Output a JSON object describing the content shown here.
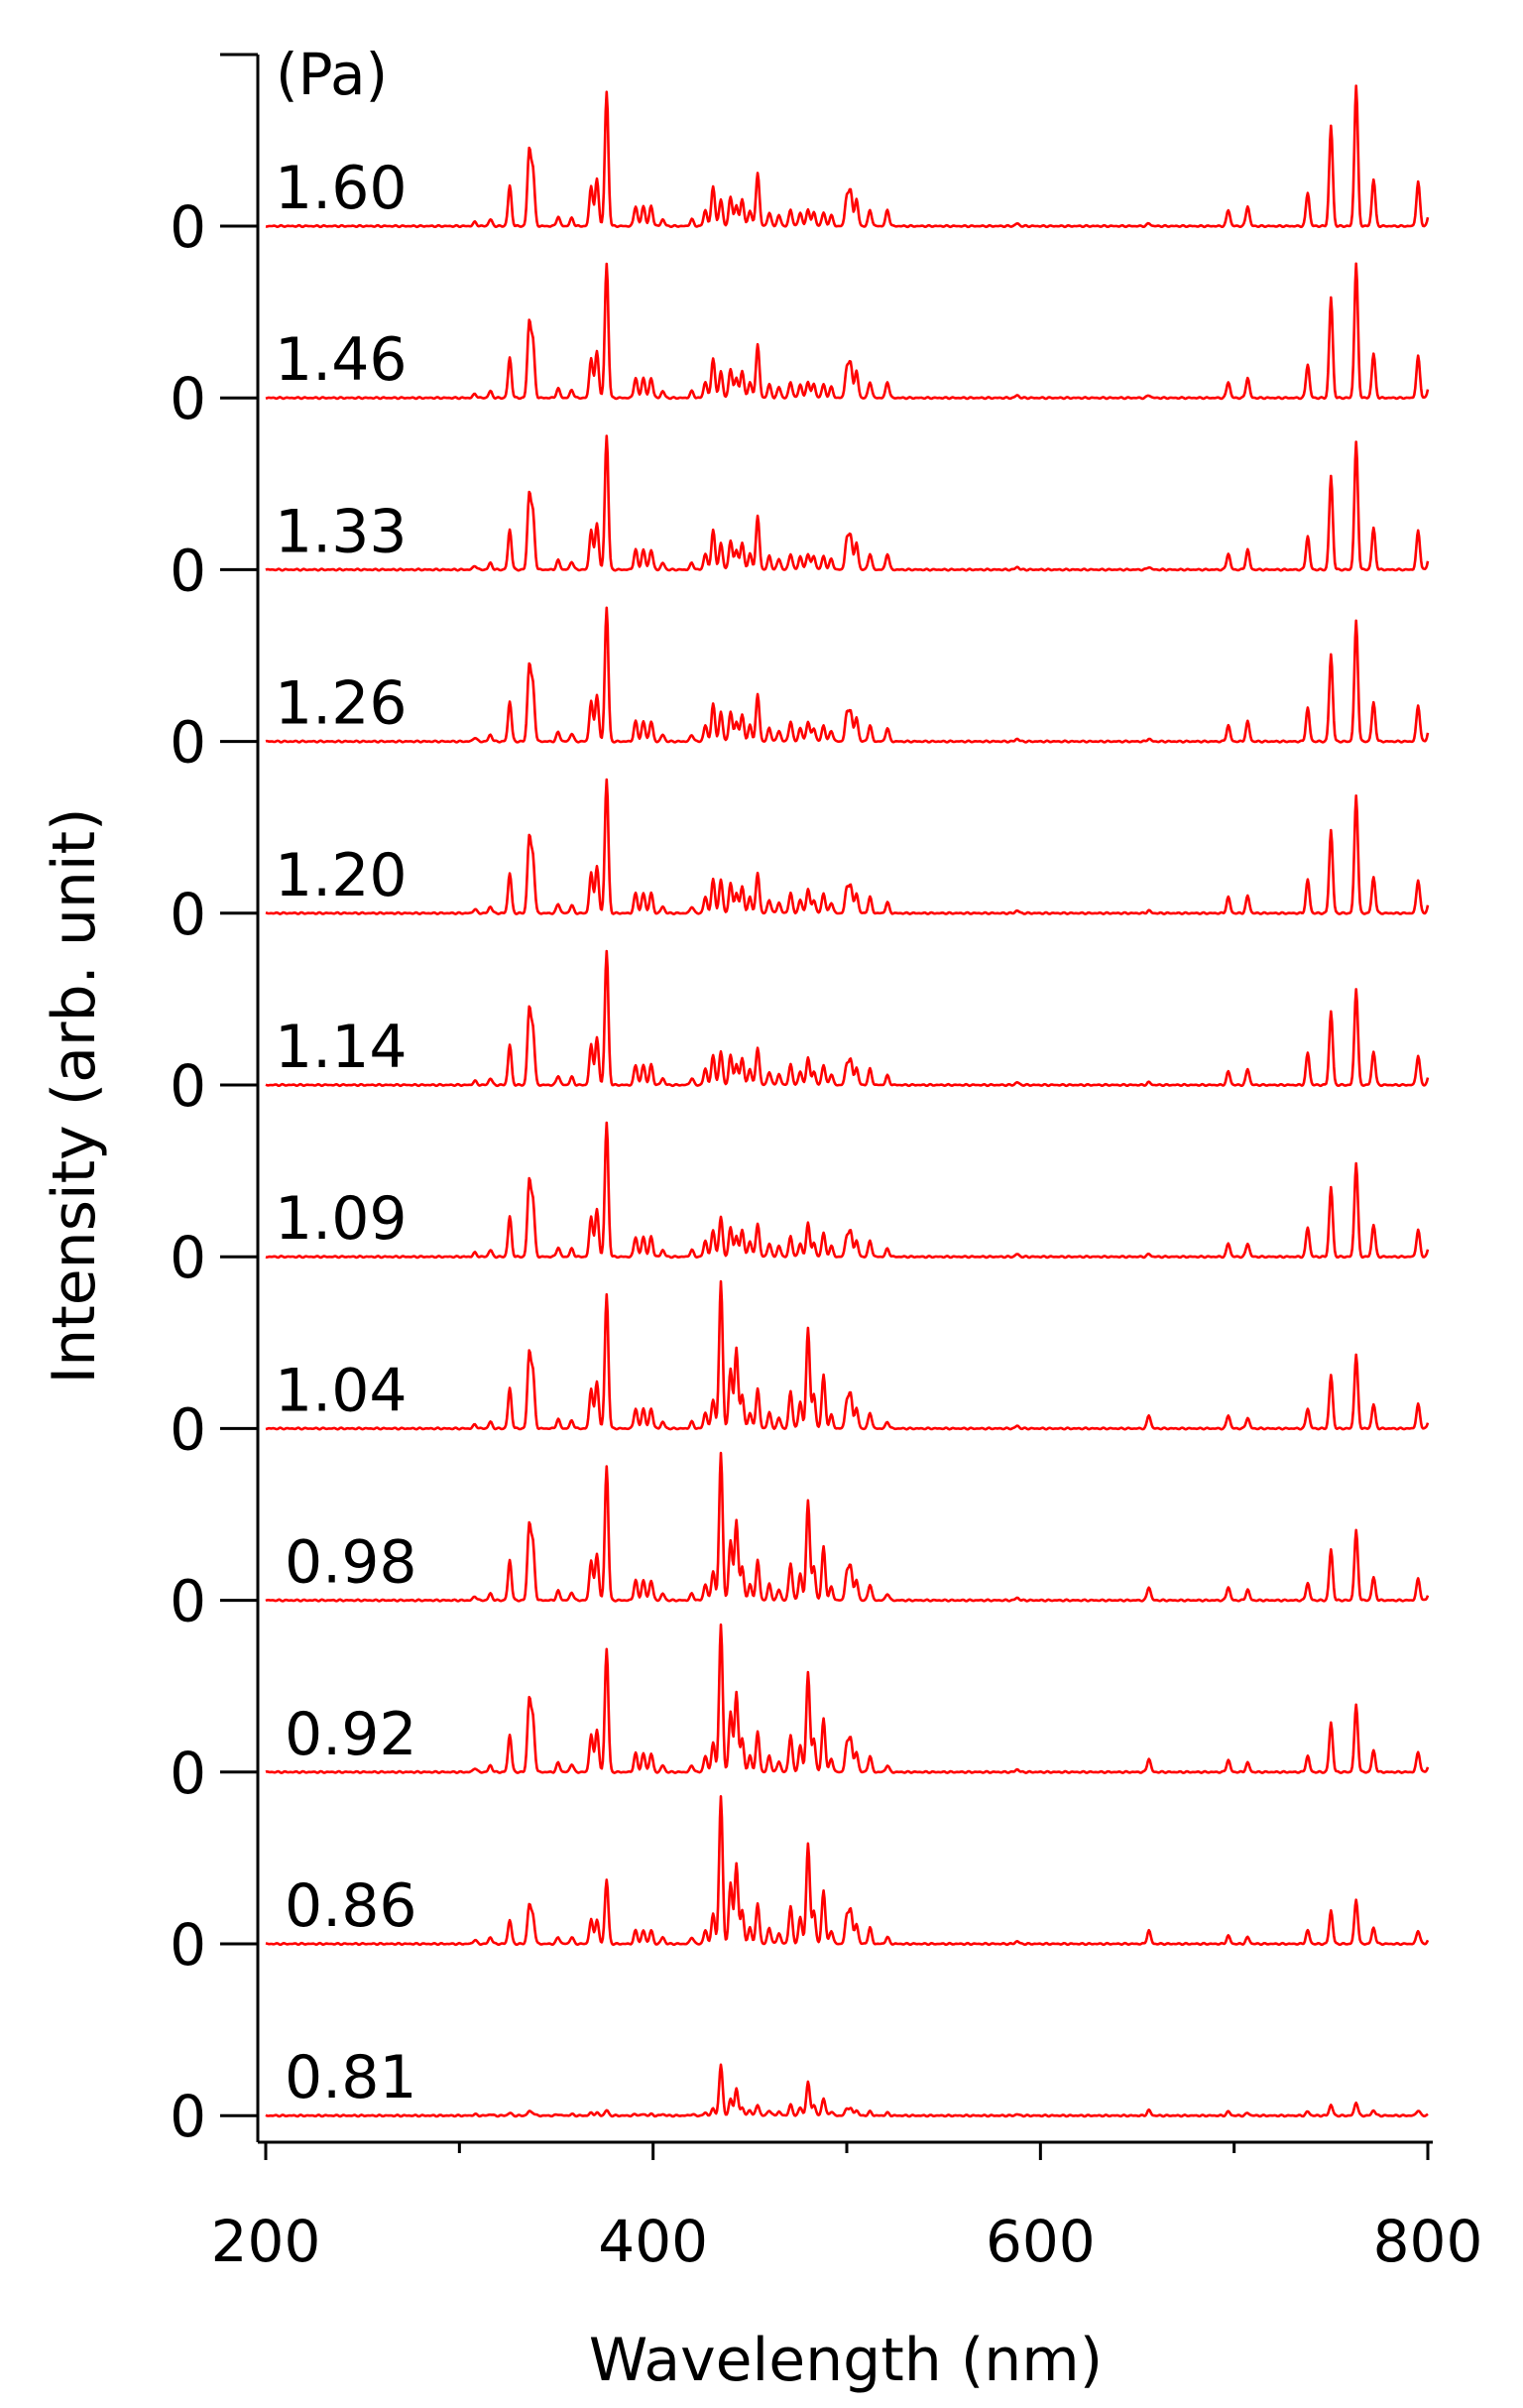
{
  "chart_data": {
    "type": "line",
    "title": "",
    "xlabel": "Wavelength (nm)",
    "ylabel": "Intensity (arb. unit)",
    "legend_title": "(Pa)",
    "xlim": [
      200,
      800
    ],
    "x_ticks": [
      200,
      400,
      600,
      800
    ],
    "x_tick_labels": [
      "200",
      "400",
      "600",
      "800"
    ],
    "x_minor_ticks": [
      300,
      500,
      700
    ],
    "y_zero_label": "0",
    "line_color": "#ff0000",
    "grid": false,
    "layout": "stacked offset spectra, highest pressure at top",
    "peak_wavelengths": [
      308,
      316,
      326,
      336,
      338,
      351,
      358,
      368,
      371,
      376,
      391,
      395,
      399,
      405,
      420,
      427,
      431,
      435,
      440,
      443,
      446,
      450,
      454,
      460,
      465,
      471,
      476,
      480,
      483,
      488,
      492,
      500,
      502,
      505,
      512,
      521,
      588,
      656,
      697,
      707,
      738,
      750,
      763,
      772,
      795,
      801
    ],
    "series": [
      {
        "name": "1.60",
        "peaks": [
          0.03,
          0.05,
          0.3,
          0.55,
          0.4,
          0.07,
          0.06,
          0.3,
          0.35,
          1.0,
          0.15,
          0.15,
          0.15,
          0.05,
          0.05,
          0.12,
          0.3,
          0.2,
          0.22,
          0.15,
          0.2,
          0.12,
          0.4,
          0.1,
          0.08,
          0.12,
          0.1,
          0.12,
          0.1,
          0.1,
          0.08,
          0.22,
          0.25,
          0.2,
          0.12,
          0.12,
          0.02,
          0.02,
          0.12,
          0.15,
          0.25,
          0.75,
          1.05,
          0.35,
          0.33,
          0.12
        ]
      },
      {
        "name": "1.46",
        "peaks": [
          0.03,
          0.05,
          0.3,
          0.55,
          0.4,
          0.07,
          0.06,
          0.3,
          0.35,
          1.0,
          0.15,
          0.15,
          0.15,
          0.05,
          0.05,
          0.12,
          0.3,
          0.2,
          0.22,
          0.15,
          0.2,
          0.12,
          0.4,
          0.1,
          0.08,
          0.12,
          0.1,
          0.12,
          0.1,
          0.1,
          0.08,
          0.22,
          0.25,
          0.2,
          0.12,
          0.12,
          0.02,
          0.02,
          0.12,
          0.15,
          0.25,
          0.75,
          1.0,
          0.33,
          0.31,
          0.12
        ]
      },
      {
        "name": "1.33",
        "peaks": [
          0.03,
          0.05,
          0.3,
          0.55,
          0.4,
          0.07,
          0.06,
          0.3,
          0.35,
          1.0,
          0.15,
          0.15,
          0.15,
          0.05,
          0.05,
          0.12,
          0.3,
          0.2,
          0.22,
          0.15,
          0.2,
          0.12,
          0.4,
          0.1,
          0.08,
          0.12,
          0.1,
          0.12,
          0.1,
          0.1,
          0.08,
          0.22,
          0.25,
          0.2,
          0.12,
          0.12,
          0.02,
          0.02,
          0.12,
          0.15,
          0.25,
          0.7,
          0.95,
          0.31,
          0.29,
          0.12
        ]
      },
      {
        "name": "1.26",
        "peaks": [
          0.03,
          0.05,
          0.3,
          0.55,
          0.4,
          0.07,
          0.06,
          0.3,
          0.35,
          1.0,
          0.15,
          0.15,
          0.15,
          0.05,
          0.05,
          0.12,
          0.28,
          0.22,
          0.22,
          0.15,
          0.2,
          0.12,
          0.35,
          0.1,
          0.08,
          0.15,
          0.1,
          0.15,
          0.1,
          0.12,
          0.08,
          0.2,
          0.22,
          0.18,
          0.12,
          0.1,
          0.02,
          0.02,
          0.12,
          0.15,
          0.25,
          0.65,
          0.9,
          0.29,
          0.27,
          0.12
        ]
      },
      {
        "name": "1.20",
        "peaks": [
          0.03,
          0.05,
          0.3,
          0.55,
          0.4,
          0.07,
          0.06,
          0.3,
          0.35,
          1.0,
          0.15,
          0.15,
          0.15,
          0.05,
          0.05,
          0.12,
          0.25,
          0.25,
          0.22,
          0.15,
          0.2,
          0.12,
          0.3,
          0.1,
          0.08,
          0.15,
          0.1,
          0.18,
          0.1,
          0.15,
          0.08,
          0.18,
          0.2,
          0.15,
          0.12,
          0.08,
          0.02,
          0.02,
          0.12,
          0.13,
          0.25,
          0.62,
          0.88,
          0.27,
          0.25,
          0.11
        ]
      },
      {
        "name": "1.14",
        "peaks": [
          0.03,
          0.05,
          0.3,
          0.55,
          0.4,
          0.07,
          0.06,
          0.3,
          0.35,
          1.0,
          0.15,
          0.15,
          0.15,
          0.05,
          0.05,
          0.12,
          0.22,
          0.25,
          0.22,
          0.15,
          0.2,
          0.12,
          0.28,
          0.1,
          0.08,
          0.15,
          0.1,
          0.2,
          0.1,
          0.15,
          0.08,
          0.15,
          0.18,
          0.13,
          0.12,
          0.07,
          0.02,
          0.02,
          0.1,
          0.12,
          0.24,
          0.55,
          0.72,
          0.25,
          0.22,
          0.1
        ]
      },
      {
        "name": "1.09",
        "peaks": [
          0.03,
          0.05,
          0.3,
          0.55,
          0.4,
          0.07,
          0.06,
          0.3,
          0.35,
          1.0,
          0.15,
          0.15,
          0.15,
          0.05,
          0.05,
          0.12,
          0.2,
          0.3,
          0.22,
          0.15,
          0.2,
          0.12,
          0.25,
          0.1,
          0.08,
          0.15,
          0.1,
          0.25,
          0.1,
          0.18,
          0.08,
          0.15,
          0.18,
          0.12,
          0.12,
          0.06,
          0.02,
          0.02,
          0.1,
          0.1,
          0.22,
          0.52,
          0.7,
          0.24,
          0.2,
          0.1
        ]
      },
      {
        "name": "1.04",
        "peaks": [
          0.03,
          0.05,
          0.3,
          0.55,
          0.4,
          0.07,
          0.06,
          0.3,
          0.35,
          1.0,
          0.15,
          0.15,
          0.15,
          0.05,
          0.05,
          0.12,
          0.22,
          1.1,
          0.45,
          0.6,
          0.25,
          0.12,
          0.3,
          0.12,
          0.08,
          0.28,
          0.2,
          0.75,
          0.25,
          0.4,
          0.1,
          0.2,
          0.25,
          0.15,
          0.12,
          0.05,
          0.02,
          0.1,
          0.1,
          0.08,
          0.15,
          0.4,
          0.55,
          0.18,
          0.18,
          0.08
        ]
      },
      {
        "name": "0.98",
        "peaks": [
          0.03,
          0.05,
          0.3,
          0.55,
          0.4,
          0.07,
          0.06,
          0.3,
          0.35,
          1.0,
          0.15,
          0.15,
          0.15,
          0.05,
          0.05,
          0.12,
          0.22,
          1.1,
          0.45,
          0.6,
          0.25,
          0.12,
          0.3,
          0.12,
          0.08,
          0.28,
          0.2,
          0.75,
          0.25,
          0.4,
          0.1,
          0.2,
          0.25,
          0.15,
          0.12,
          0.05,
          0.02,
          0.1,
          0.1,
          0.08,
          0.13,
          0.38,
          0.52,
          0.17,
          0.16,
          0.07
        ]
      },
      {
        "name": "0.92",
        "peaks": [
          0.03,
          0.05,
          0.28,
          0.53,
          0.38,
          0.07,
          0.06,
          0.28,
          0.32,
          0.92,
          0.14,
          0.14,
          0.14,
          0.05,
          0.05,
          0.12,
          0.22,
          1.1,
          0.45,
          0.6,
          0.25,
          0.12,
          0.3,
          0.12,
          0.08,
          0.28,
          0.2,
          0.75,
          0.25,
          0.4,
          0.1,
          0.2,
          0.25,
          0.15,
          0.12,
          0.05,
          0.02,
          0.1,
          0.09,
          0.07,
          0.12,
          0.37,
          0.5,
          0.16,
          0.15,
          0.07
        ]
      },
      {
        "name": "0.86",
        "peaks": [
          0.03,
          0.05,
          0.18,
          0.28,
          0.2,
          0.05,
          0.05,
          0.18,
          0.18,
          0.48,
          0.1,
          0.1,
          0.1,
          0.05,
          0.05,
          0.1,
          0.22,
          1.1,
          0.45,
          0.6,
          0.25,
          0.12,
          0.3,
          0.12,
          0.08,
          0.28,
          0.2,
          0.75,
          0.25,
          0.4,
          0.1,
          0.2,
          0.25,
          0.15,
          0.12,
          0.05,
          0.02,
          0.1,
          0.06,
          0.05,
          0.1,
          0.25,
          0.33,
          0.12,
          0.1,
          0.05
        ]
      },
      {
        "name": "0.81",
        "peaks": [
          0.01,
          0.01,
          0.02,
          0.03,
          0.02,
          0.01,
          0.01,
          0.02,
          0.02,
          0.04,
          0.01,
          0.01,
          0.01,
          0.01,
          0.01,
          0.02,
          0.05,
          0.38,
          0.12,
          0.2,
          0.06,
          0.04,
          0.08,
          0.04,
          0.03,
          0.08,
          0.06,
          0.25,
          0.08,
          0.13,
          0.03,
          0.05,
          0.05,
          0.04,
          0.03,
          0.02,
          0.01,
          0.04,
          0.03,
          0.02,
          0.03,
          0.08,
          0.1,
          0.04,
          0.04,
          0.02
        ]
      }
    ]
  }
}
